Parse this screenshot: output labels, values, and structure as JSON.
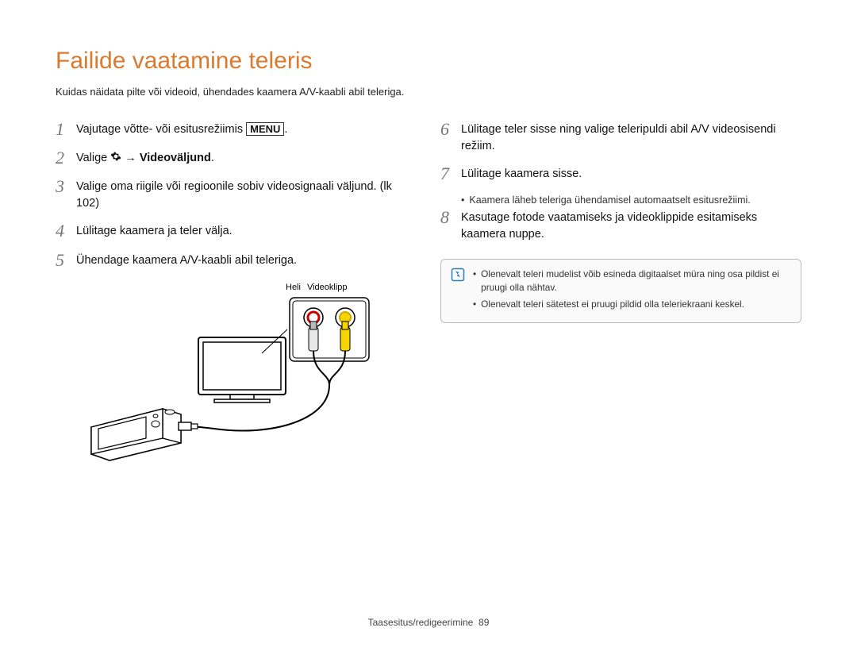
{
  "title": "Failide vaatamine teleris",
  "subtitle": "Kuidas näidata pilte või videoid, ühendades kaamera A/V-kaabli abil teleriga.",
  "left_steps": [
    {
      "num": "1",
      "html": "Vajutage võtte- või esitusrežiimis <span class='menu-box'>MENU</span>."
    },
    {
      "num": "2",
      "html": "Valige <span class='gear'><svg width='14' height='14' viewBox='0 0 24 24'><path fill='#111' d='M12 8a4 4 0 100 8 4 4 0 000-8zm9 4a7 7 0 01-.1 1.2l2 1.6-2 3.4-2.4-.8a7 7 0 01-2 1.2l-.4 2.5h-4l-.4-2.5a7 7 0 01-2-1.2l-2.4.8-2-3.4 2-1.6A7 7 0 013 12a7 7 0 01.1-1.2l-2-1.6 2-3.4 2.4.8a7 7 0 012-1.2L7.9 3h4l.4 2.5a7 7 0 012 1.2l2.4-.8 2 3.4-2 1.6c.1.4.1.8.1 1.1z'/></svg></span> → <b>Videoväljund</b>."
    },
    {
      "num": "3",
      "html": "Valige oma riigile või regioonile sobiv videosignaali väljund. (lk 102)"
    },
    {
      "num": "4",
      "html": "Lülitage kaamera ja teler välja."
    },
    {
      "num": "5",
      "html": "Ühendage kaamera A/V-kaabli abil teleriga."
    }
  ],
  "right_steps": [
    {
      "num": "6",
      "html": "Lülitage teler sisse ning valige teleripuldi abil A/V videosisendi režiim."
    },
    {
      "num": "7",
      "html": "Lülitage kaamera sisse.",
      "sub": "Kaamera läheb teleriga ühendamisel automaatselt esitusrežiimi."
    },
    {
      "num": "8",
      "html": "Kasutage fotode vaatamiseks ja videoklippide esitamiseks kaamera nuppe."
    }
  ],
  "notes": [
    "Olenevalt teleri mudelist võib esineda digitaalset müra ning osa pildist ei pruugi olla nähtav.",
    "Olenevalt teleri sätetest ei pruugi pildid olla teleriekraani keskel."
  ],
  "diagram": {
    "label_audio": "Heli",
    "label_video": "Videoklipp",
    "colors": {
      "audio_plug": "#e0e0e0",
      "audio_ring": "#c00",
      "video_plug": "#f5d400",
      "video_ring": "#f5d400",
      "outline": "#000000",
      "screen": "#ffffff"
    }
  },
  "footer": {
    "section": "Taasesitus/redigeerimine",
    "page": "89"
  }
}
